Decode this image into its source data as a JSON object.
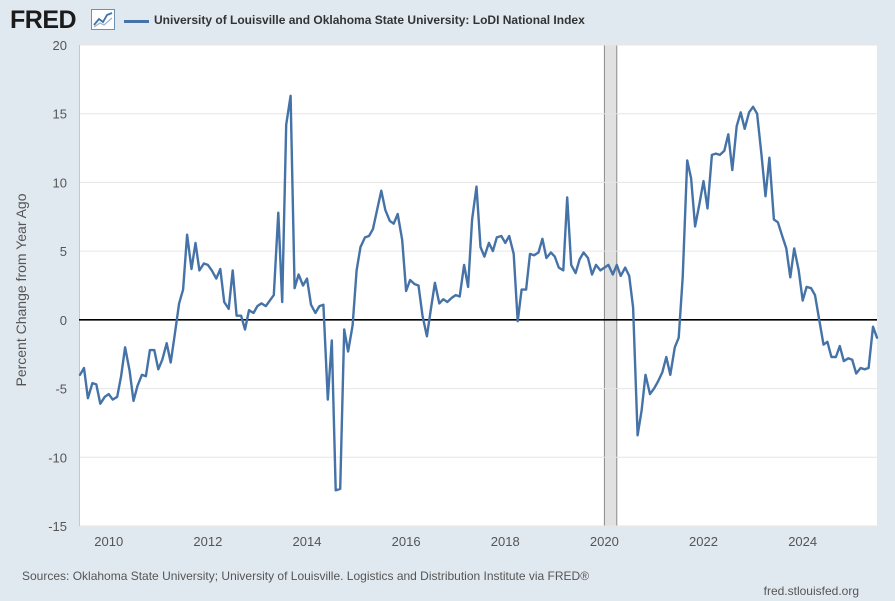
{
  "header": {
    "logo_text": "FRED",
    "logo_icon": "line-chart-icon"
  },
  "colors": {
    "page_bg": "#e1e9f0",
    "plot_bg": "#ffffff",
    "series": "#4572a7",
    "zero_line": "#000000",
    "recession_shade": "#e1e1e1",
    "gridline": "#e6e6e6",
    "text": "#555555"
  },
  "chart_data": {
    "type": "line",
    "title": "University of Louisville and Oklahoma State University: LoDI National Index",
    "xlabel": "",
    "ylabel": "Percent Change from Year Ago",
    "ylim": [
      -15,
      20
    ],
    "xlim": [
      2009.4,
      2025.5
    ],
    "grid": true,
    "legend_position": "top-left",
    "yticks": [
      -15,
      -10,
      -5,
      0,
      5,
      10,
      15,
      20
    ],
    "ytick_labels": [
      "-15",
      "-10",
      "-5",
      "0",
      "5",
      "10",
      "15",
      "20"
    ],
    "xticks": [
      2010,
      2012,
      2014,
      2016,
      2018,
      2020,
      2022,
      2024
    ],
    "xtick_labels": [
      "2010",
      "2012",
      "2014",
      "2016",
      "2018",
      "2020",
      "2022",
      "2024"
    ],
    "recession_bands": [
      [
        2020.0,
        2020.25
      ]
    ],
    "series": [
      {
        "name": "University of Louisville and Oklahoma State University: LoDI National Index",
        "x": [
          2009.42,
          2009.5,
          2009.58,
          2009.67,
          2009.75,
          2009.83,
          2009.92,
          2010.0,
          2010.08,
          2010.17,
          2010.25,
          2010.33,
          2010.42,
          2010.5,
          2010.58,
          2010.67,
          2010.75,
          2010.83,
          2010.92,
          2011.0,
          2011.08,
          2011.17,
          2011.25,
          2011.33,
          2011.42,
          2011.5,
          2011.58,
          2011.67,
          2011.75,
          2011.83,
          2011.92,
          2012.0,
          2012.08,
          2012.17,
          2012.25,
          2012.33,
          2012.42,
          2012.5,
          2012.58,
          2012.67,
          2012.75,
          2012.83,
          2012.92,
          2013.0,
          2013.08,
          2013.17,
          2013.25,
          2013.33,
          2013.42,
          2013.5,
          2013.58,
          2013.67,
          2013.75,
          2013.83,
          2013.92,
          2014.0,
          2014.08,
          2014.17,
          2014.25,
          2014.33,
          2014.42,
          2014.5,
          2014.58,
          2014.67,
          2014.75,
          2014.83,
          2014.92,
          2015.0,
          2015.08,
          2015.17,
          2015.25,
          2015.33,
          2015.42,
          2015.5,
          2015.58,
          2015.67,
          2015.75,
          2015.83,
          2015.92,
          2016.0,
          2016.08,
          2016.17,
          2016.25,
          2016.33,
          2016.42,
          2016.5,
          2016.58,
          2016.67,
          2016.75,
          2016.83,
          2016.92,
          2017.0,
          2017.08,
          2017.17,
          2017.25,
          2017.33,
          2017.42,
          2017.5,
          2017.58,
          2017.67,
          2017.75,
          2017.83,
          2017.92,
          2018.0,
          2018.08,
          2018.17,
          2018.25,
          2018.33,
          2018.42,
          2018.5,
          2018.58,
          2018.67,
          2018.75,
          2018.83,
          2018.92,
          2019.0,
          2019.08,
          2019.17,
          2019.25,
          2019.33,
          2019.42,
          2019.5,
          2019.58,
          2019.67,
          2019.75,
          2019.83,
          2019.92,
          2020.0,
          2020.08,
          2020.17,
          2020.25,
          2020.33,
          2020.42,
          2020.5,
          2020.58,
          2020.67,
          2020.75,
          2020.83,
          2020.92,
          2021.0,
          2021.08,
          2021.17,
          2021.25,
          2021.33,
          2021.42,
          2021.5,
          2021.58,
          2021.67,
          2021.75,
          2021.83,
          2021.92,
          2022.0,
          2022.08,
          2022.17,
          2022.25,
          2022.33,
          2022.42,
          2022.5,
          2022.58,
          2022.67,
          2022.75,
          2022.83,
          2022.92,
          2023.0,
          2023.08,
          2023.17,
          2023.25,
          2023.33,
          2023.42,
          2023.5,
          2023.58,
          2023.67,
          2023.75,
          2023.83,
          2023.92,
          2024.0,
          2024.08,
          2024.17,
          2024.25,
          2024.33,
          2024.42,
          2024.5,
          2024.58,
          2024.67,
          2024.75,
          2024.83,
          2024.92,
          2025.0,
          2025.08,
          2025.17,
          2025.25,
          2025.33,
          2025.42,
          2025.5
        ],
        "values": [
          -4.0,
          -3.5,
          -5.7,
          -4.6,
          -4.7,
          -6.1,
          -5.6,
          -5.4,
          -5.8,
          -5.6,
          -4.1,
          -2.0,
          -3.7,
          -5.9,
          -4.8,
          -4.0,
          -4.1,
          -2.2,
          -2.2,
          -3.6,
          -2.9,
          -1.7,
          -3.1,
          -1.1,
          1.2,
          2.2,
          6.2,
          3.7,
          5.6,
          3.6,
          4.1,
          4.0,
          3.6,
          3.0,
          3.7,
          1.3,
          0.8,
          3.6,
          0.3,
          0.3,
          -0.7,
          0.7,
          0.5,
          1.0,
          1.2,
          1.0,
          1.4,
          1.8,
          7.8,
          1.3,
          14.2,
          16.3,
          2.3,
          3.3,
          2.5,
          3.0,
          1.1,
          0.5,
          1.0,
          1.1,
          -5.8,
          -1.5,
          -12.4,
          -12.3,
          -0.7,
          -2.3,
          -0.4,
          3.6,
          5.3,
          6.0,
          6.1,
          6.6,
          8.1,
          9.4,
          8.0,
          7.2,
          7.0,
          7.7,
          5.8,
          2.1,
          2.9,
          2.6,
          2.5,
          0.3,
          -1.2,
          0.8,
          2.7,
          1.2,
          1.5,
          1.3,
          1.6,
          1.8,
          1.7,
          4.0,
          2.4,
          7.3,
          9.7,
          5.3,
          4.6,
          5.6,
          5.0,
          6.0,
          6.1,
          5.6,
          6.1,
          4.8,
          -0.1,
          2.2,
          2.2,
          4.8,
          4.7,
          4.9,
          5.9,
          4.5,
          4.9,
          4.6,
          3.8,
          3.6,
          8.9,
          4.0,
          3.4,
          4.4,
          4.9,
          4.5,
          3.3,
          4.0,
          3.6,
          3.8,
          4.0,
          3.3,
          4.0,
          3.2,
          3.8,
          3.2,
          0.9,
          -8.4,
          -6.6,
          -4.0,
          -5.4,
          -5.0,
          -4.5,
          -3.8,
          -2.7,
          -4.0,
          -2.0,
          -1.3,
          3.1,
          11.6,
          10.3,
          6.8,
          8.5,
          10.1,
          8.1,
          12.0,
          12.1,
          12.0,
          12.3,
          13.5,
          10.9,
          14.1,
          15.1,
          13.9,
          15.1,
          15.5,
          15.0,
          12.0,
          9.0,
          11.8,
          7.3,
          7.1,
          6.2,
          5.2,
          3.1,
          5.2,
          3.6,
          1.4,
          2.4,
          2.3,
          1.8,
          0.1,
          -1.8,
          -1.6,
          -2.7,
          -2.7,
          -1.9,
          -3.0,
          -2.8,
          -2.9,
          -3.9,
          -3.5,
          -3.6,
          -3.5,
          -0.5,
          -1.3
        ]
      }
    ]
  },
  "footer": {
    "sources": "Sources: Oklahoma State University; University of Louisville. Logistics and Distribution Institute via FRED®",
    "site": "fred.stlouisfed.org"
  }
}
